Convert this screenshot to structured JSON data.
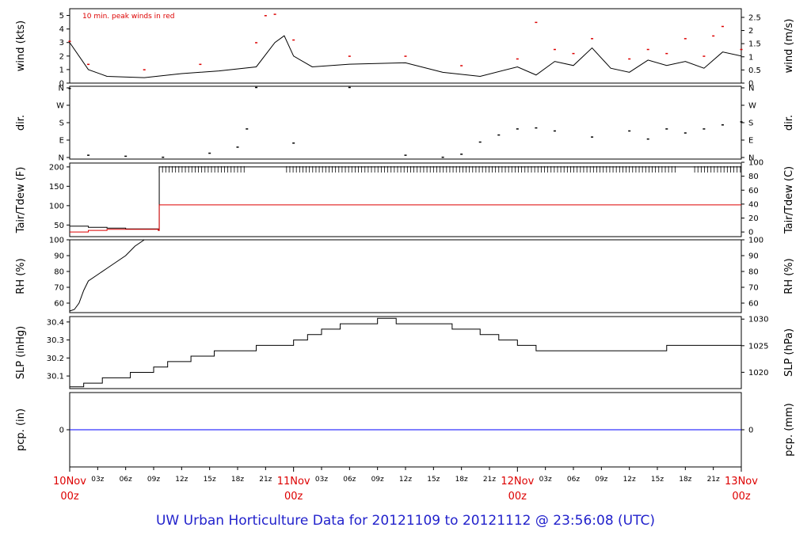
{
  "title": "UW Urban Horticulture Data for 20121109  to  20121112 @ 23:56:08  (UTC)",
  "colors": {
    "red": "#dd0000",
    "blue": "#0000ff",
    "black": "#000000",
    "title": "#2222cc"
  },
  "chart_data": [
    {
      "type": "line",
      "id": "wind",
      "ylabel": "wind (kts)",
      "y2label": "wind (m/s)",
      "annotation": "10 min. peak winds in red",
      "yticks": [
        "0",
        "1",
        "2",
        "3",
        "4",
        "5"
      ],
      "y2ticks": [
        "0",
        "0.5",
        "1",
        "1.5",
        "2",
        "2.5"
      ],
      "ylim": [
        0,
        5.5
      ],
      "series": [
        {
          "values": [
            [
              0,
              3
            ],
            [
              2,
              1
            ],
            [
              4,
              0.5
            ],
            [
              8,
              0.4
            ],
            [
              12,
              0.7
            ],
            [
              16,
              0.9
            ],
            [
              20,
              1.2
            ],
            [
              22,
              3
            ],
            [
              23,
              3.5
            ],
            [
              24,
              2
            ],
            [
              26,
              1.2
            ],
            [
              30,
              1.4
            ],
            [
              36,
              1.5
            ],
            [
              40,
              0.8
            ],
            [
              44,
              0.5
            ],
            [
              48,
              1.2
            ],
            [
              50,
              0.6
            ],
            [
              52,
              1.6
            ],
            [
              54,
              1.3
            ],
            [
              56,
              2.6
            ],
            [
              58,
              1.1
            ],
            [
              60,
              0.8
            ],
            [
              62,
              1.7
            ],
            [
              64,
              1.3
            ],
            [
              66,
              1.6
            ],
            [
              68,
              1.1
            ],
            [
              70,
              2.3
            ],
            [
              72,
              2.0
            ],
            [
              72,
              1.7
            ]
          ]
        },
        {
          "type": "scatter",
          "values": [
            [
              0,
              3.1
            ],
            [
              2,
              1.4
            ],
            [
              8,
              1.0
            ],
            [
              14,
              1.4
            ],
            [
              20,
              3.0
            ],
            [
              21,
              5.0
            ],
            [
              22,
              5.1
            ],
            [
              24,
              3.2
            ],
            [
              30,
              2.0
            ],
            [
              36,
              2.0
            ],
            [
              42,
              1.3
            ],
            [
              48,
              1.8
            ],
            [
              50,
              4.5
            ],
            [
              52,
              2.5
            ],
            [
              54,
              2.2
            ],
            [
              56,
              3.3
            ],
            [
              60,
              1.8
            ],
            [
              62,
              2.5
            ],
            [
              64,
              2.2
            ],
            [
              66,
              3.3
            ],
            [
              68,
              2.0
            ],
            [
              69,
              3.5
            ],
            [
              70,
              4.2
            ],
            [
              72,
              2.5
            ]
          ]
        }
      ]
    },
    {
      "type": "scatter",
      "id": "dir",
      "ylabel": "dir.",
      "y2label": "dir.",
      "yticks": [
        "N",
        "E",
        "S",
        "W",
        "N"
      ],
      "y2ticks": [
        "N",
        "E",
        "S",
        "W",
        "N"
      ],
      "ylim": [
        0,
        360
      ],
      "series": [
        {
          "values": [
            [
              0,
              350
            ],
            [
              2,
              20
            ],
            [
              6,
              15
            ],
            [
              10,
              10
            ],
            [
              15,
              30
            ],
            [
              18,
              60
            ],
            [
              19,
              150
            ],
            [
              20,
              355
            ],
            [
              24,
              80
            ],
            [
              30,
              355
            ],
            [
              36,
              20
            ],
            [
              40,
              10
            ],
            [
              42,
              25
            ],
            [
              44,
              85
            ],
            [
              46,
              120
            ],
            [
              48,
              150
            ],
            [
              50,
              155
            ],
            [
              52,
              140
            ],
            [
              56,
              110
            ],
            [
              60,
              140
            ],
            [
              62,
              100
            ],
            [
              64,
              150
            ],
            [
              66,
              130
            ],
            [
              68,
              150
            ],
            [
              70,
              170
            ],
            [
              72,
              185
            ]
          ]
        }
      ]
    },
    {
      "type": "line",
      "id": "tair",
      "ylabel": "Tair/Tdew (F)",
      "y2label": "Tair/Tdew (C)",
      "yticks": [
        "50",
        "100",
        "150",
        "200"
      ],
      "y2ticks": [
        "0",
        "20",
        "40",
        "60",
        "80",
        "100"
      ],
      "ylim": [
        20,
        210
      ],
      "series": [
        {
          "values": [
            [
              0,
              47
            ],
            [
              2,
              44
            ],
            [
              4,
              42
            ],
            [
              6,
              40
            ],
            [
              9.5,
              36
            ],
            [
              9.6,
              200
            ],
            [
              72,
              200
            ]
          ]
        },
        {
          "values": [
            [
              0,
              32
            ],
            [
              2,
              36
            ],
            [
              4,
              39
            ],
            [
              6,
              39
            ],
            [
              9.5,
              36
            ],
            [
              9.6,
              102
            ],
            [
              72,
              102
            ]
          ]
        }
      ]
    },
    {
      "type": "line",
      "id": "rh",
      "ylabel": "RH (%)",
      "y2label": "RH (%)",
      "yticks": [
        "60",
        "70",
        "80",
        "90",
        "100"
      ],
      "y2ticks": [
        "60",
        "70",
        "80",
        "90",
        "100"
      ],
      "ylim": [
        54,
        100
      ],
      "series": [
        {
          "values": [
            [
              0,
              55
            ],
            [
              0.5,
              56
            ],
            [
              1,
              60
            ],
            [
              1.5,
              68
            ],
            [
              2,
              74
            ],
            [
              3,
              78
            ],
            [
              4,
              82
            ],
            [
              5,
              86
            ],
            [
              6,
              90
            ],
            [
              7,
              96
            ],
            [
              8,
              100
            ]
          ]
        }
      ]
    },
    {
      "type": "line",
      "id": "slp",
      "ylabel": "SLP (inHg)",
      "y2label": "SLP (hPa)",
      "yticks": [
        "30.1",
        "30.2",
        "30.3",
        "30.4"
      ],
      "y2ticks": [
        "1020",
        "1025",
        "1030"
      ],
      "ylim": [
        30.03,
        30.43
      ],
      "series": [
        {
          "values": [
            [
              0,
              30.04
            ],
            [
              1.5,
              30.06
            ],
            [
              3.5,
              30.09
            ],
            [
              6.5,
              30.12
            ],
            [
              9,
              30.15
            ],
            [
              10.5,
              30.18
            ],
            [
              13,
              30.21
            ],
            [
              15.5,
              30.24
            ],
            [
              20,
              30.27
            ],
            [
              24,
              30.3
            ],
            [
              25.5,
              30.33
            ],
            [
              27,
              30.36
            ],
            [
              29,
              30.39
            ],
            [
              33,
              30.42
            ],
            [
              35,
              30.39
            ],
            [
              41,
              30.36
            ],
            [
              44,
              30.33
            ],
            [
              46,
              30.3
            ],
            [
              48,
              30.27
            ],
            [
              50,
              30.24
            ],
            [
              60,
              30.24
            ],
            [
              64,
              30.27
            ],
            [
              72,
              30.27
            ]
          ]
        }
      ]
    },
    {
      "type": "line",
      "id": "pcp",
      "ylabel": "pcp. (in)",
      "y2label": "pcp. (mm)",
      "yticks": [
        "0"
      ],
      "y2ticks": [
        "0"
      ],
      "ylim": [
        -1,
        1
      ],
      "series": [
        {
          "values": [
            [
              0,
              0
            ],
            [
              72,
              0
            ]
          ]
        }
      ]
    }
  ],
  "xaxis": {
    "major": [
      {
        "label": "10Nov",
        "sub": "00z",
        "hour": 0
      },
      {
        "label": "11Nov",
        "sub": "00z",
        "hour": 24
      },
      {
        "label": "12Nov",
        "sub": "00z",
        "hour": 48
      },
      {
        "label": "13Nov",
        "sub": "00z",
        "hour": 72
      }
    ],
    "minor": [
      {
        "label": "03z",
        "hour": 3
      },
      {
        "label": "06z",
        "hour": 6
      },
      {
        "label": "09z",
        "hour": 9
      },
      {
        "label": "12z",
        "hour": 12
      },
      {
        "label": "15z",
        "hour": 15
      },
      {
        "label": "18z",
        "hour": 18
      },
      {
        "label": "21z",
        "hour": 21
      },
      {
        "label": "03z",
        "hour": 27
      },
      {
        "label": "06z",
        "hour": 30
      },
      {
        "label": "09z",
        "hour": 33
      },
      {
        "label": "12z",
        "hour": 36
      },
      {
        "label": "15z",
        "hour": 39
      },
      {
        "label": "18z",
        "hour": 42
      },
      {
        "label": "21z",
        "hour": 45
      },
      {
        "label": "03z",
        "hour": 51
      },
      {
        "label": "06z",
        "hour": 54
      },
      {
        "label": "09z",
        "hour": 57
      },
      {
        "label": "12z",
        "hour": 60
      },
      {
        "label": "15z",
        "hour": 63
      },
      {
        "label": "18z",
        "hour": 66
      },
      {
        "label": "21z",
        "hour": 69
      }
    ]
  }
}
